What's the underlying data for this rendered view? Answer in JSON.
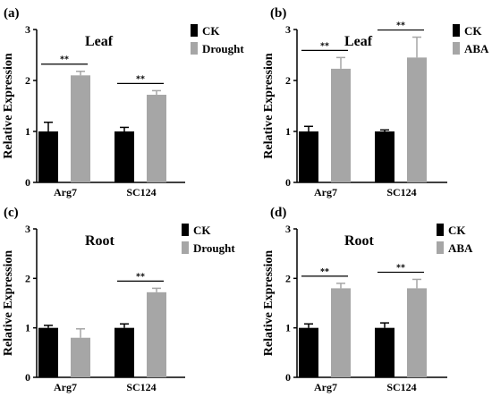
{
  "colors": {
    "ck": "#000000",
    "treatment": "#a6a6a6",
    "axis": "#000000"
  },
  "chart_data": [
    {
      "type": "bar",
      "panel": "(a)",
      "title": "Leaf",
      "ylabel": "Relative Expression",
      "ylim": [
        0,
        3
      ],
      "yticks": [
        "0",
        "1",
        "2",
        "3"
      ],
      "categories": [
        "Arg7",
        "SC124"
      ],
      "legend_position": "top-right",
      "series": [
        {
          "name": "CK",
          "color_key": "ck",
          "values": [
            1.0,
            1.0
          ],
          "errors": [
            0.18,
            0.08
          ]
        },
        {
          "name": "Drought",
          "color_key": "treatment",
          "values": [
            2.1,
            1.72
          ],
          "errors": [
            0.08,
            0.08
          ]
        }
      ],
      "significance": [
        "**",
        "**"
      ]
    },
    {
      "type": "bar",
      "panel": "(b)",
      "title": "Leaf",
      "ylabel": "Relative Expression",
      "ylim": [
        0,
        3
      ],
      "yticks": [
        "0",
        "1",
        "2",
        "3"
      ],
      "categories": [
        "Arg7",
        "SC124"
      ],
      "legend_position": "top-right",
      "series": [
        {
          "name": "CK",
          "color_key": "ck",
          "values": [
            1.0,
            1.0
          ],
          "errors": [
            0.1,
            0.03
          ]
        },
        {
          "name": "ABA",
          "color_key": "treatment",
          "values": [
            2.23,
            2.45
          ],
          "errors": [
            0.22,
            0.4
          ]
        }
      ],
      "significance": [
        "**",
        "**"
      ]
    },
    {
      "type": "bar",
      "panel": "(c)",
      "title": "Root",
      "ylabel": "Relative Expression",
      "ylim": [
        0,
        3
      ],
      "yticks": [
        "0",
        "1",
        "2",
        "3"
      ],
      "categories": [
        "Arg7",
        "SC124"
      ],
      "legend_position": "top-right",
      "series": [
        {
          "name": "CK",
          "color_key": "ck",
          "values": [
            1.0,
            1.0
          ],
          "errors": [
            0.05,
            0.08
          ]
        },
        {
          "name": "Drought",
          "color_key": "treatment",
          "values": [
            0.8,
            1.72
          ],
          "errors": [
            0.18,
            0.08
          ]
        }
      ],
      "significance": [
        "",
        "**"
      ]
    },
    {
      "type": "bar",
      "panel": "(d)",
      "title": "Root",
      "ylabel": "Relative Expression",
      "ylim": [
        0,
        3
      ],
      "yticks": [
        "0",
        "1",
        "2",
        "3"
      ],
      "categories": [
        "Arg7",
        "SC124"
      ],
      "legend_position": "top-right",
      "series": [
        {
          "name": "CK",
          "color_key": "ck",
          "values": [
            1.0,
            1.0
          ],
          "errors": [
            0.08,
            0.1
          ]
        },
        {
          "name": "ABA",
          "color_key": "treatment",
          "values": [
            1.8,
            1.8
          ],
          "errors": [
            0.1,
            0.18
          ]
        }
      ],
      "significance": [
        "**",
        "**"
      ]
    }
  ]
}
